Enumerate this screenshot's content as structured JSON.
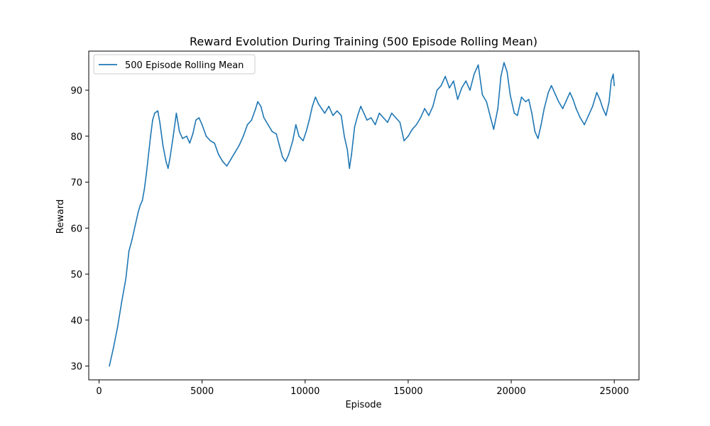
{
  "chart_data": {
    "type": "line",
    "title": "Reward Evolution During Training (500 Episode Rolling Mean)",
    "xlabel": "Episode",
    "ylabel": "Reward",
    "xlim": [
      -500,
      26200
    ],
    "ylim": [
      27.0,
      98.5
    ],
    "xticks": [
      0,
      5000,
      10000,
      15000,
      20000,
      25000
    ],
    "yticks": [
      30,
      40,
      50,
      60,
      70,
      80,
      90
    ],
    "grid": false,
    "legend": "top-left",
    "series": [
      {
        "name": "500 Episode Rolling Mean",
        "color": "#1f77b4",
        "points": [
          [
            500,
            30.0
          ],
          [
            700,
            34.0
          ],
          [
            900,
            38.5
          ],
          [
            1100,
            44.0
          ],
          [
            1300,
            49.0
          ],
          [
            1450,
            55.0
          ],
          [
            1600,
            57.5
          ],
          [
            1750,
            60.5
          ],
          [
            1900,
            63.5
          ],
          [
            2000,
            65.0
          ],
          [
            2100,
            66.0
          ],
          [
            2200,
            68.5
          ],
          [
            2300,
            72.0
          ],
          [
            2400,
            76.0
          ],
          [
            2500,
            80.0
          ],
          [
            2600,
            83.5
          ],
          [
            2700,
            85.0
          ],
          [
            2850,
            85.5
          ],
          [
            2950,
            83.0
          ],
          [
            3100,
            78.0
          ],
          [
            3250,
            74.5
          ],
          [
            3350,
            73.0
          ],
          [
            3450,
            75.5
          ],
          [
            3600,
            80.0
          ],
          [
            3750,
            85.0
          ],
          [
            3900,
            81.0
          ],
          [
            4050,
            79.5
          ],
          [
            4250,
            80.0
          ],
          [
            4400,
            78.5
          ],
          [
            4550,
            80.5
          ],
          [
            4700,
            83.5
          ],
          [
            4850,
            84.0
          ],
          [
            5000,
            82.5
          ],
          [
            5200,
            80.0
          ],
          [
            5400,
            79.0
          ],
          [
            5600,
            78.5
          ],
          [
            5800,
            76.0
          ],
          [
            6000,
            74.5
          ],
          [
            6200,
            73.5
          ],
          [
            6400,
            75.0
          ],
          [
            6600,
            76.5
          ],
          [
            6800,
            78.0
          ],
          [
            7000,
            80.0
          ],
          [
            7200,
            82.5
          ],
          [
            7400,
            83.5
          ],
          [
            7600,
            86.0
          ],
          [
            7700,
            87.5
          ],
          [
            7850,
            86.5
          ],
          [
            8000,
            84.0
          ],
          [
            8200,
            82.5
          ],
          [
            8400,
            81.0
          ],
          [
            8600,
            80.5
          ],
          [
            8750,
            78.0
          ],
          [
            8900,
            75.5
          ],
          [
            9050,
            74.5
          ],
          [
            9200,
            76.0
          ],
          [
            9400,
            79.0
          ],
          [
            9550,
            82.5
          ],
          [
            9700,
            80.0
          ],
          [
            9900,
            79.0
          ],
          [
            10050,
            81.0
          ],
          [
            10200,
            83.5
          ],
          [
            10350,
            86.5
          ],
          [
            10500,
            88.5
          ],
          [
            10650,
            87.0
          ],
          [
            10800,
            86.0
          ],
          [
            10950,
            85.0
          ],
          [
            11150,
            86.5
          ],
          [
            11350,
            84.5
          ],
          [
            11550,
            85.5
          ],
          [
            11750,
            84.5
          ],
          [
            11900,
            80.0
          ],
          [
            12050,
            77.0
          ],
          [
            12150,
            73.0
          ],
          [
            12250,
            76.0
          ],
          [
            12400,
            82.0
          ],
          [
            12550,
            84.5
          ],
          [
            12700,
            86.5
          ],
          [
            12850,
            85.0
          ],
          [
            13000,
            83.5
          ],
          [
            13200,
            84.0
          ],
          [
            13400,
            82.5
          ],
          [
            13600,
            85.0
          ],
          [
            13800,
            84.0
          ],
          [
            14000,
            83.0
          ],
          [
            14200,
            85.0
          ],
          [
            14400,
            84.0
          ],
          [
            14600,
            83.0
          ],
          [
            14800,
            79.0
          ],
          [
            15000,
            80.0
          ],
          [
            15200,
            81.5
          ],
          [
            15400,
            82.5
          ],
          [
            15600,
            84.0
          ],
          [
            15800,
            86.0
          ],
          [
            16000,
            84.5
          ],
          [
            16200,
            86.5
          ],
          [
            16400,
            90.0
          ],
          [
            16600,
            91.0
          ],
          [
            16800,
            93.0
          ],
          [
            17000,
            90.5
          ],
          [
            17200,
            92.0
          ],
          [
            17400,
            88.0
          ],
          [
            17600,
            90.5
          ],
          [
            17800,
            92.0
          ],
          [
            18000,
            90.0
          ],
          [
            18200,
            93.5
          ],
          [
            18400,
            95.5
          ],
          [
            18600,
            89.0
          ],
          [
            18800,
            87.5
          ],
          [
            19000,
            84.0
          ],
          [
            19150,
            81.5
          ],
          [
            19350,
            86.0
          ],
          [
            19500,
            93.0
          ],
          [
            19650,
            96.0
          ],
          [
            19800,
            94.0
          ],
          [
            19950,
            89.0
          ],
          [
            20150,
            85.0
          ],
          [
            20300,
            84.5
          ],
          [
            20500,
            88.5
          ],
          [
            20700,
            87.5
          ],
          [
            20850,
            88.0
          ],
          [
            21000,
            85.0
          ],
          [
            21150,
            81.0
          ],
          [
            21300,
            79.5
          ],
          [
            21450,
            82.5
          ],
          [
            21600,
            86.0
          ],
          [
            21800,
            89.5
          ],
          [
            21950,
            91.0
          ],
          [
            22150,
            89.0
          ],
          [
            22300,
            87.5
          ],
          [
            22500,
            86.0
          ],
          [
            22650,
            87.5
          ],
          [
            22850,
            89.5
          ],
          [
            23000,
            88.0
          ],
          [
            23150,
            86.0
          ],
          [
            23350,
            84.0
          ],
          [
            23550,
            82.5
          ],
          [
            23750,
            84.5
          ],
          [
            23950,
            86.5
          ],
          [
            24150,
            89.5
          ],
          [
            24300,
            88.0
          ],
          [
            24450,
            86.0
          ],
          [
            24600,
            84.5
          ],
          [
            24750,
            87.5
          ],
          [
            24850,
            92.0
          ],
          [
            24950,
            93.5
          ],
          [
            25000,
            91.0
          ]
        ]
      }
    ]
  }
}
